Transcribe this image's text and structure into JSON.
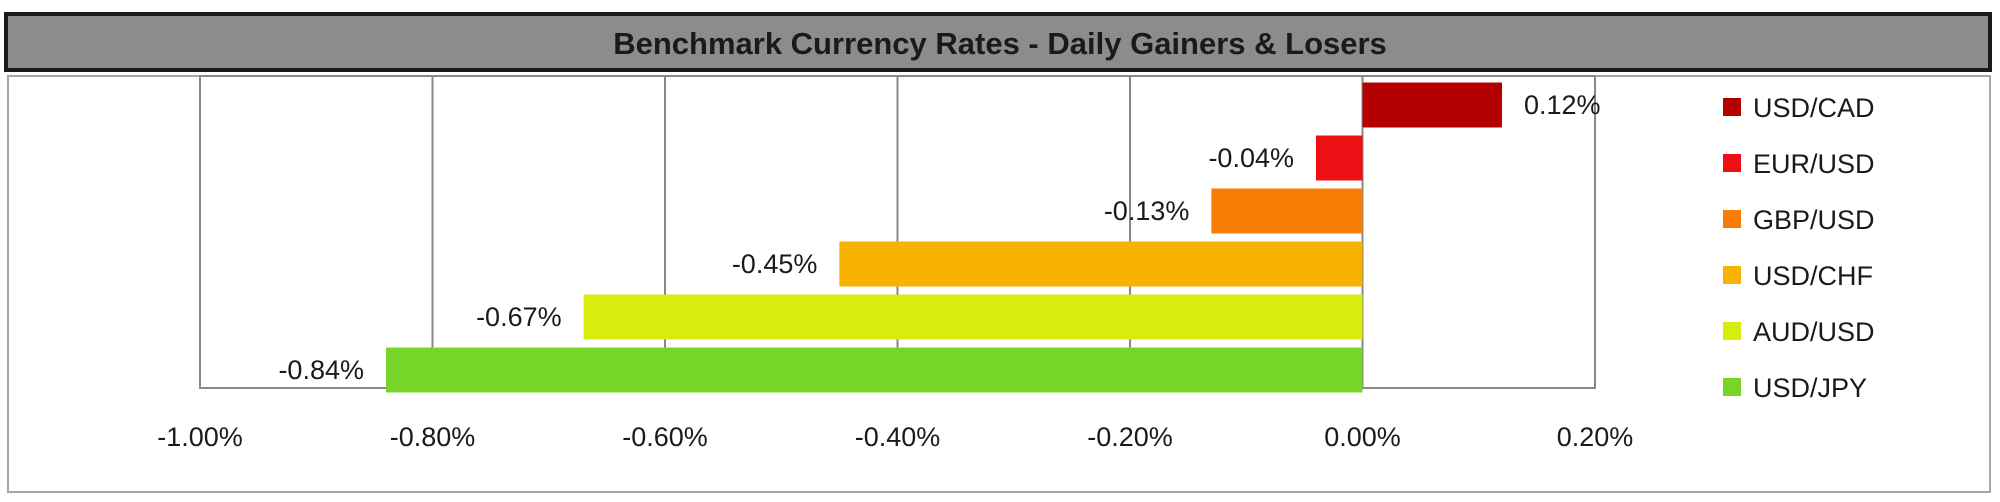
{
  "chart_data": {
    "type": "bar",
    "orientation": "horizontal",
    "title": "Benchmark Currency Rates - Daily Gainers & Losers",
    "categories": [
      "USD/CAD",
      "EUR/USD",
      "GBP/USD",
      "USD/CHF",
      "AUD/USD",
      "USD/JPY"
    ],
    "values": [
      0.12,
      -0.04,
      -0.13,
      -0.45,
      -0.67,
      -0.84
    ],
    "value_labels": [
      "0.12%",
      "-0.04%",
      "-0.13%",
      "-0.45%",
      "-0.67%",
      "-0.84%"
    ],
    "colors": [
      "#b30000",
      "#ee0f14",
      "#f97c05",
      "#f8b200",
      "#d8ec0d",
      "#76d528"
    ],
    "xlim": [
      -1.0,
      0.2
    ],
    "xticks": [
      -1.0,
      -0.8,
      -0.6,
      -0.4,
      -0.2,
      0.0,
      0.2
    ],
    "xtick_labels": [
      "-1.00%",
      "-0.80%",
      "-0.60%",
      "-0.40%",
      "-0.20%",
      "0.00%",
      "0.20%"
    ],
    "grid": true,
    "legend": "right",
    "xlabel": "",
    "ylabel": ""
  }
}
